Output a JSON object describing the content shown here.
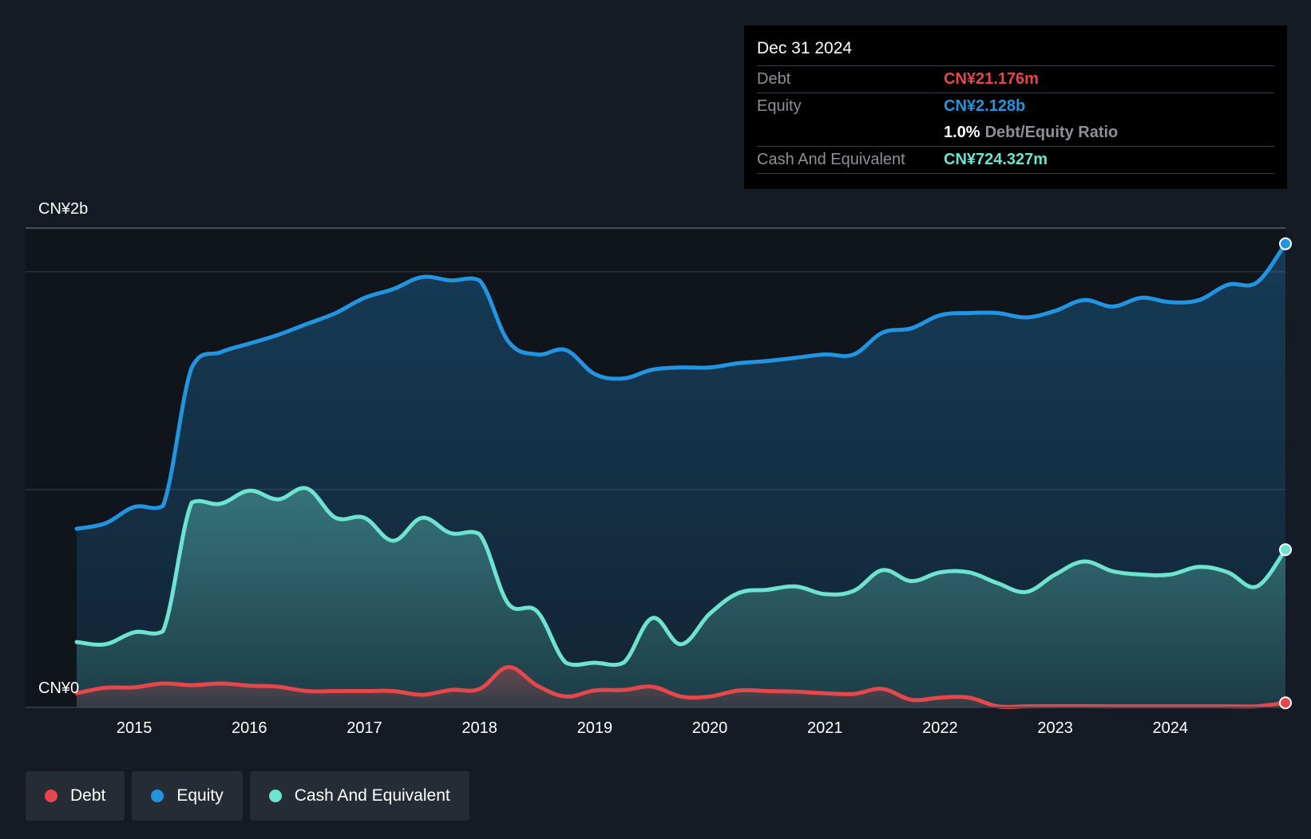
{
  "tooltip": {
    "date": "Dec 31 2024",
    "debt_label": "Debt",
    "debt_value": "CN¥21.176m",
    "equity_label": "Equity",
    "equity_value": "CN¥2.128b",
    "ratio_value": "1.0%",
    "ratio_label": "Debt/Equity Ratio",
    "cash_label": "Cash And Equivalent",
    "cash_value": "CN¥724.327m"
  },
  "colors": {
    "debt": "#e5474b",
    "equity": "#2394df",
    "cash": "#6de3d0",
    "background": "#151b24"
  },
  "legend": [
    {
      "name": "debt",
      "label": "Debt"
    },
    {
      "name": "equity",
      "label": "Equity"
    },
    {
      "name": "cash",
      "label": "Cash And Equivalent"
    }
  ],
  "chart_data": {
    "type": "area",
    "title": "",
    "ylabel_top": "CN¥2b",
    "ylabel_bottom": "CN¥0",
    "ylim": [
      0,
      2200
    ],
    "y_gridlines": [
      1000,
      2000
    ],
    "xlim": [
      2014.5,
      2025.0
    ],
    "x_ticks": [
      2015,
      2016,
      2017,
      2018,
      2019,
      2020,
      2021,
      2022,
      2023,
      2024
    ],
    "series": [
      {
        "name": "Equity",
        "key": "equity",
        "points": [
          [
            2014.5,
            820
          ],
          [
            2014.75,
            845
          ],
          [
            2015.0,
            920
          ],
          [
            2015.25,
            925
          ],
          [
            2015.5,
            1560
          ],
          [
            2015.75,
            1630
          ],
          [
            2016.0,
            1670
          ],
          [
            2016.25,
            1710
          ],
          [
            2016.5,
            1760
          ],
          [
            2016.75,
            1810
          ],
          [
            2017.0,
            1880
          ],
          [
            2017.25,
            1920
          ],
          [
            2017.5,
            1975
          ],
          [
            2017.75,
            1960
          ],
          [
            2018.0,
            1960
          ],
          [
            2018.25,
            1680
          ],
          [
            2018.5,
            1620
          ],
          [
            2018.75,
            1640
          ],
          [
            2019.0,
            1530
          ],
          [
            2019.25,
            1510
          ],
          [
            2019.5,
            1550
          ],
          [
            2019.75,
            1560
          ],
          [
            2020.0,
            1560
          ],
          [
            2020.25,
            1580
          ],
          [
            2020.5,
            1590
          ],
          [
            2020.75,
            1605
          ],
          [
            2021.0,
            1620
          ],
          [
            2021.25,
            1620
          ],
          [
            2021.5,
            1720
          ],
          [
            2021.75,
            1740
          ],
          [
            2022.0,
            1800
          ],
          [
            2022.25,
            1810
          ],
          [
            2022.5,
            1810
          ],
          [
            2022.75,
            1790
          ],
          [
            2023.0,
            1820
          ],
          [
            2023.25,
            1870
          ],
          [
            2023.5,
            1840
          ],
          [
            2023.75,
            1880
          ],
          [
            2024.0,
            1860
          ],
          [
            2024.25,
            1870
          ],
          [
            2024.5,
            1940
          ],
          [
            2024.75,
            1950
          ],
          [
            2025.0,
            2128
          ]
        ]
      },
      {
        "name": "Cash And Equivalent",
        "key": "cash",
        "points": [
          [
            2014.5,
            300
          ],
          [
            2014.75,
            290
          ],
          [
            2015.0,
            345
          ],
          [
            2015.25,
            350
          ],
          [
            2015.5,
            940
          ],
          [
            2015.75,
            935
          ],
          [
            2016.0,
            995
          ],
          [
            2016.25,
            955
          ],
          [
            2016.5,
            1005
          ],
          [
            2016.75,
            870
          ],
          [
            2017.0,
            870
          ],
          [
            2017.25,
            765
          ],
          [
            2017.5,
            870
          ],
          [
            2017.75,
            800
          ],
          [
            2018.0,
            795
          ],
          [
            2018.25,
            475
          ],
          [
            2018.5,
            440
          ],
          [
            2018.75,
            205
          ],
          [
            2019.0,
            205
          ],
          [
            2019.25,
            205
          ],
          [
            2019.5,
            410
          ],
          [
            2019.75,
            290
          ],
          [
            2020.0,
            430
          ],
          [
            2020.25,
            525
          ],
          [
            2020.5,
            540
          ],
          [
            2020.75,
            555
          ],
          [
            2021.0,
            520
          ],
          [
            2021.25,
            535
          ],
          [
            2021.5,
            630
          ],
          [
            2021.75,
            580
          ],
          [
            2022.0,
            620
          ],
          [
            2022.25,
            620
          ],
          [
            2022.5,
            570
          ],
          [
            2022.75,
            530
          ],
          [
            2023.0,
            610
          ],
          [
            2023.25,
            670
          ],
          [
            2023.5,
            625
          ],
          [
            2023.75,
            610
          ],
          [
            2024.0,
            610
          ],
          [
            2024.25,
            645
          ],
          [
            2024.5,
            620
          ],
          [
            2024.75,
            555
          ],
          [
            2025.0,
            724
          ]
        ]
      },
      {
        "name": "Debt",
        "key": "debt",
        "points": [
          [
            2014.5,
            65
          ],
          [
            2014.75,
            90
          ],
          [
            2015.0,
            92
          ],
          [
            2015.25,
            110
          ],
          [
            2015.5,
            102
          ],
          [
            2015.75,
            110
          ],
          [
            2016.0,
            100
          ],
          [
            2016.25,
            95
          ],
          [
            2016.5,
            75
          ],
          [
            2016.75,
            75
          ],
          [
            2017.0,
            75
          ],
          [
            2017.25,
            75
          ],
          [
            2017.5,
            58
          ],
          [
            2017.75,
            80
          ],
          [
            2018.0,
            85
          ],
          [
            2018.25,
            185
          ],
          [
            2018.5,
            100
          ],
          [
            2018.75,
            50
          ],
          [
            2019.0,
            78
          ],
          [
            2019.25,
            80
          ],
          [
            2019.5,
            95
          ],
          [
            2019.75,
            50
          ],
          [
            2020.0,
            50
          ],
          [
            2020.25,
            78
          ],
          [
            2020.5,
            75
          ],
          [
            2020.75,
            72
          ],
          [
            2021.0,
            65
          ],
          [
            2021.25,
            62
          ],
          [
            2021.5,
            85
          ],
          [
            2021.75,
            35
          ],
          [
            2022.0,
            45
          ],
          [
            2022.25,
            45
          ],
          [
            2022.5,
            5
          ],
          [
            2022.75,
            5
          ],
          [
            2023.0,
            6
          ],
          [
            2023.25,
            6
          ],
          [
            2023.5,
            5
          ],
          [
            2023.75,
            5
          ],
          [
            2024.0,
            5
          ],
          [
            2024.25,
            5
          ],
          [
            2024.5,
            5
          ],
          [
            2024.75,
            5
          ],
          [
            2025.0,
            21
          ]
        ]
      }
    ]
  }
}
